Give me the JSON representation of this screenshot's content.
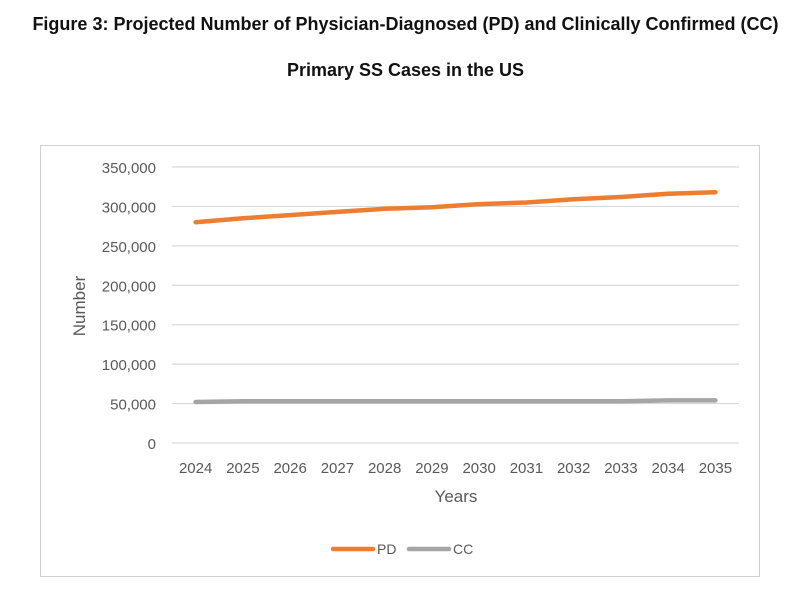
{
  "figure": {
    "title_line1": "Figure 3: Projected Number of Physician-Diagnosed (PD) and Clinically Confirmed (CC)",
    "title_line2": "Primary SS Cases in the US"
  },
  "chart_data": {
    "type": "line",
    "title": "Figure 3: Projected Number of Physician-Diagnosed (PD) and Clinically Confirmed (CC) Primary SS Cases in the US",
    "xlabel": "Years",
    "ylabel": "Number",
    "categories": [
      "2024",
      "2025",
      "2026",
      "2027",
      "2028",
      "2029",
      "2030",
      "2031",
      "2032",
      "2033",
      "2034",
      "2035"
    ],
    "ylim": [
      0,
      350000
    ],
    "yticks": [
      0,
      50000,
      100000,
      150000,
      200000,
      250000,
      300000,
      350000
    ],
    "ytick_labels": [
      "0",
      "50,000",
      "100,000",
      "150,000",
      "200,000",
      "250,000",
      "300,000",
      "350,000"
    ],
    "grid": true,
    "legend_position": "bottom",
    "series": [
      {
        "name": "PD",
        "color": "#ED7D31",
        "values": [
          280000,
          285000,
          289000,
          293000,
          297000,
          299000,
          303000,
          305000,
          309000,
          312000,
          316000,
          318000
        ]
      },
      {
        "name": "CC",
        "color": "#A5A5A5",
        "values": [
          52000,
          53000,
          53000,
          53000,
          53000,
          53000,
          53000,
          53000,
          53000,
          53000,
          54000,
          54000
        ]
      }
    ]
  }
}
